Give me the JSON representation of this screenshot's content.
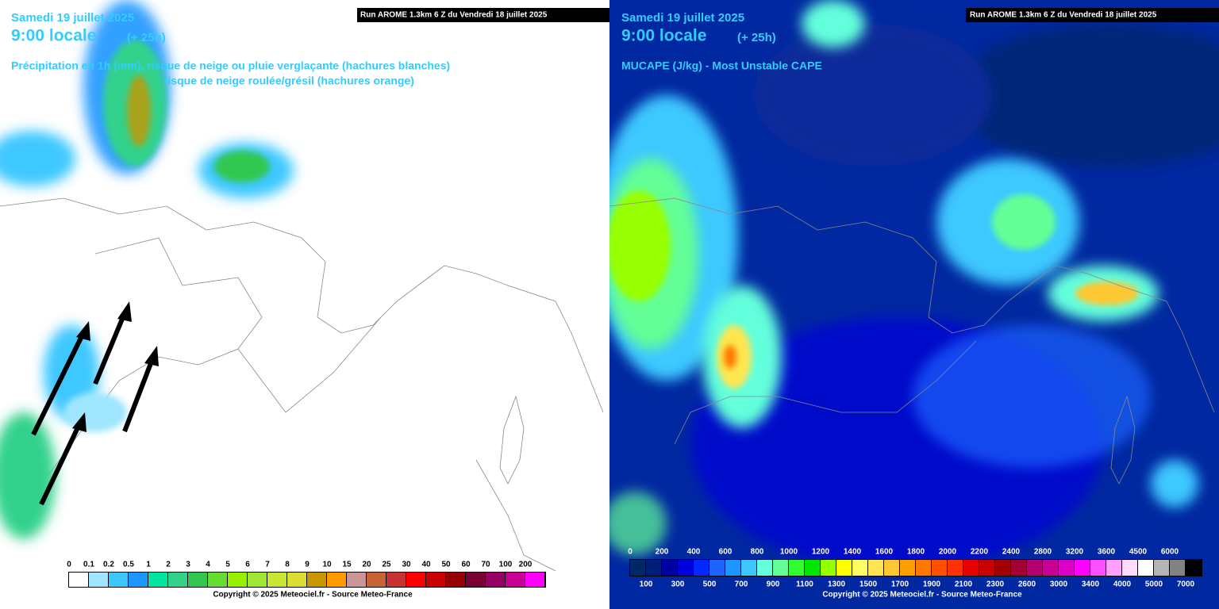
{
  "left": {
    "date": "Samedi 19 juillet 2025",
    "time": "9:00 locale",
    "lead": "(+ 25h)",
    "run": "Run AROME 1.3km 6 Z du Vendredi 18 juillet 2025",
    "field_line1": "Précipitation en 1h (mm), risque de neige ou pluie verglaçante (hachures blanches)",
    "field_line2": "risque de neige roulée/grésil (hachures orange)",
    "legend_labels": [
      "0",
      "0.1",
      "0.2",
      "0.5",
      "1",
      "2",
      "3",
      "4",
      "5",
      "6",
      "7",
      "8",
      "9",
      "10",
      "15",
      "20",
      "25",
      "30",
      "40",
      "50",
      "60",
      "70",
      "100",
      "200"
    ],
    "legend_colors": [
      "#ffffff",
      "#a0e6ff",
      "#3cc8ff",
      "#1e96ff",
      "#00e6a0",
      "#32d28c",
      "#32c850",
      "#64dc32",
      "#96f000",
      "#a0e632",
      "#c8e632",
      "#dcdc32",
      "#c89600",
      "#ff9b00",
      "#c89696",
      "#c86432",
      "#c83232",
      "#ff0000",
      "#c80000",
      "#960000",
      "#780032",
      "#960064",
      "#c80096",
      "#ff00ff"
    ],
    "copyright": "Copyright © 2025 Meteociel.fr - Source Meteo-France"
  },
  "right": {
    "date": "Samedi 19 juillet 2025",
    "time": "9:00 locale",
    "lead": "(+ 25h)",
    "run": "Run AROME 1.3km 6 Z du Vendredi 18 juillet 2025",
    "field_line1": "MUCAPE (J/kg) - Most Unstable CAPE",
    "legend_top": [
      "0",
      "200",
      "400",
      "600",
      "800",
      "1000",
      "1200",
      "1400",
      "1600",
      "1800",
      "2000",
      "2200",
      "2400",
      "2800",
      "3200",
      "3600",
      "4500",
      "6000"
    ],
    "legend_bottom": [
      "100",
      "300",
      "500",
      "700",
      "900",
      "1100",
      "1300",
      "1500",
      "1700",
      "1900",
      "2100",
      "2300",
      "2600",
      "3000",
      "3400",
      "4000",
      "5000",
      "7000"
    ],
    "legend_colors": [
      "#002864",
      "#001e78",
      "#0000a0",
      "#0000dc",
      "#0028ff",
      "#1e64ff",
      "#1e96ff",
      "#3cc8ff",
      "#64ffdc",
      "#64ff96",
      "#32ff32",
      "#00e600",
      "#96ff00",
      "#ffff00",
      "#ffff64",
      "#ffe650",
      "#ffc832",
      "#ffa000",
      "#ff7800",
      "#ff5000",
      "#ff3200",
      "#e60000",
      "#c80000",
      "#a00000",
      "#a00032",
      "#b4006e",
      "#c80096",
      "#dc00c8",
      "#ff00ff",
      "#ff50ff",
      "#ffa0ff",
      "#ffdcff",
      "#ffffff",
      "#b4b4b4",
      "#828282",
      "#000000"
    ],
    "copyright": "Copyright © 2025 Meteociel.fr - Source Meteo-France"
  }
}
